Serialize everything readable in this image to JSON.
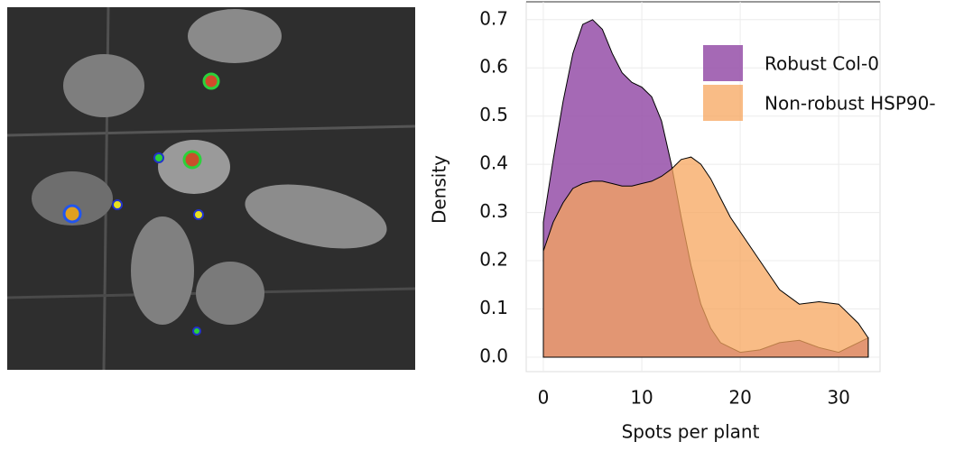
{
  "chart_data": {
    "type": "area",
    "xlabel": "Spots per plant",
    "ylabel": "Density",
    "x": [
      0,
      1,
      2,
      3,
      4,
      5,
      6,
      7,
      8,
      9,
      10,
      11,
      12,
      13,
      14,
      15,
      16,
      17,
      18,
      19,
      20,
      22,
      24,
      26,
      28,
      30,
      32,
      33
    ],
    "series": [
      {
        "name": "Robust Col-0",
        "color": "#9b59ad",
        "values": [
          0.28,
          0.41,
          0.53,
          0.63,
          0.69,
          0.7,
          0.68,
          0.63,
          0.59,
          0.57,
          0.56,
          0.54,
          0.49,
          0.4,
          0.29,
          0.19,
          0.11,
          0.06,
          0.03,
          0.02,
          0.01,
          0.015,
          0.03,
          0.035,
          0.02,
          0.01,
          0.03,
          0.04
        ]
      },
      {
        "name": "Non-robust HSP90-",
        "color": "#f7a65e",
        "values": [
          0.22,
          0.28,
          0.32,
          0.35,
          0.36,
          0.365,
          0.365,
          0.36,
          0.355,
          0.355,
          0.36,
          0.365,
          0.375,
          0.39,
          0.41,
          0.415,
          0.4,
          0.37,
          0.33,
          0.29,
          0.26,
          0.2,
          0.14,
          0.11,
          0.115,
          0.11,
          0.07,
          0.04
        ]
      }
    ],
    "xlim": [
      -1.74,
      34.2
    ],
    "ylim": [
      -0.03,
      0.737
    ],
    "xticks": [
      0,
      10,
      20,
      30
    ],
    "yticks": [
      {
        "value": 0,
        "label": "0.0"
      },
      0.1,
      0.2,
      0.3,
      0.4,
      0.5,
      0.6,
      0.7
    ],
    "grid": true,
    "legend": "upper right"
  }
}
